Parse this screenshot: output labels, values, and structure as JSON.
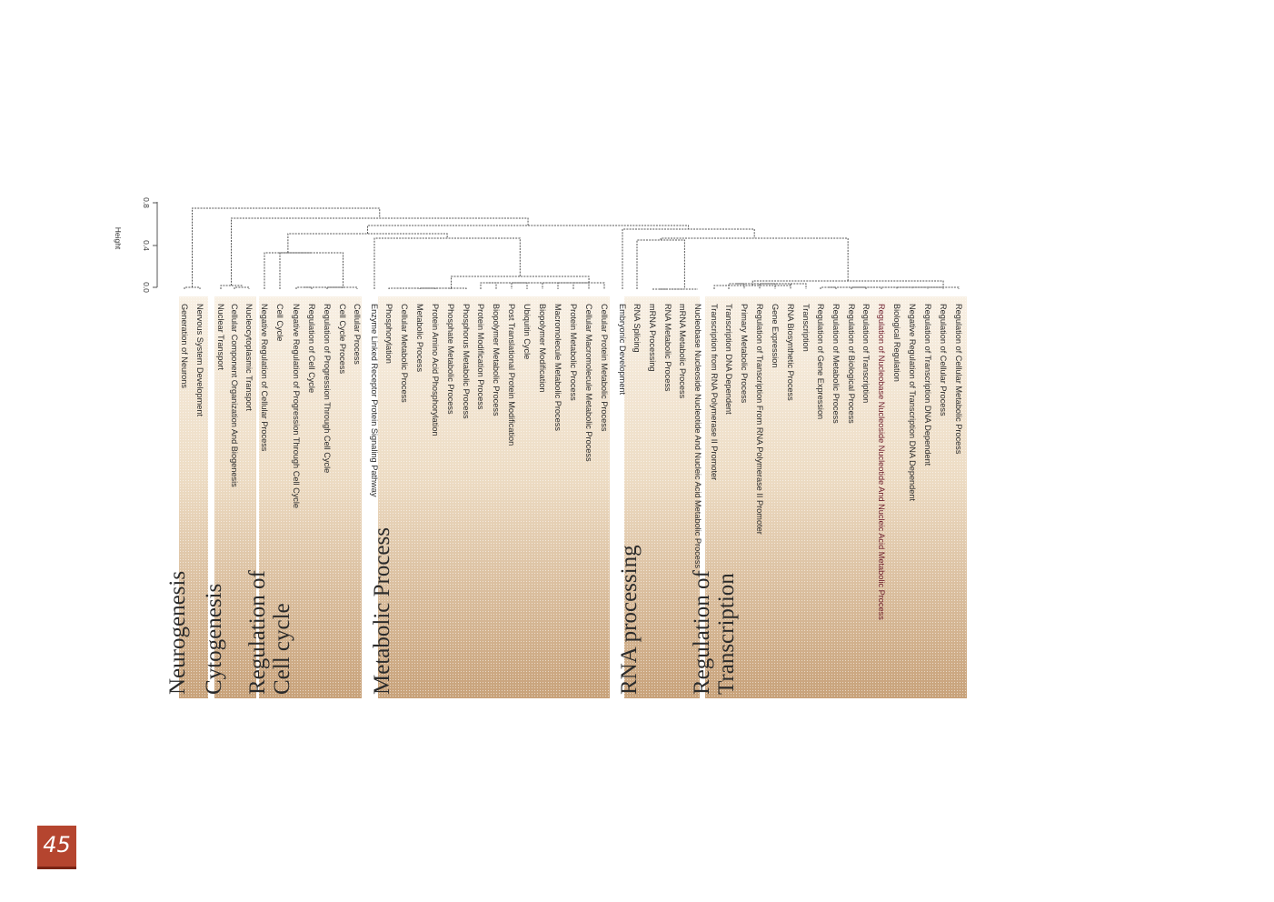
{
  "page_number": "45",
  "axis": {
    "title": "Height",
    "ticks": [
      "0.0",
      "0.4",
      "0.8"
    ]
  },
  "colors": {
    "band_top": "#c8a27a",
    "band_bottom": "#f6ead9",
    "leaf_text": "#2a2a2a",
    "accent_leaf_text": "#6a1a2a",
    "page_badge": "#b5452f"
  },
  "clusters": [
    {
      "id": "neurogenesis",
      "label_lines": [
        "Neurogenesis"
      ],
      "leaves": [
        "Generation of Neurons",
        "Nervous System Development"
      ]
    },
    {
      "id": "cytogenesis",
      "label_lines": [
        "Cytogenesis"
      ],
      "leaves": [
        "Nuclear Transport",
        "Cellular Component Organization And Biogenesis",
        "Nucleocytoplasmic Transport"
      ]
    },
    {
      "id": "cell-cycle",
      "label_lines": [
        "Regulation of",
        "Cell cycle"
      ],
      "leaves": [
        "Negative Regulation of Cellular Process",
        "Cell Cycle",
        "Negative Regulation of Progression Through Cell Cycle",
        "Regulation of Cell Cycle",
        "Regulation of Progression Through Cell Cycle",
        "Cell Cycle Process",
        "Cellular Process"
      ]
    },
    {
      "id": "metabolic",
      "label_lines": [
        "Metabolic Process"
      ],
      "leaves": [
        "Enzyme Linked Receptor Protein Signaling Pathway",
        "Phosphorylation",
        "Cellular Metabolic Process",
        "Metabolic Process",
        "Protein Amino Acid Phosphorylation",
        "Phosphate Metabolic Process",
        "Phosphorus Metabolic Process",
        "Protein Modification Process",
        "Biopolymer Metabolic Process",
        "Post Translational Protein Modification",
        "Ubiquitin Cycle",
        "Biopolymer Modification",
        "Macromolecule Metabolic Process",
        "Protein Metabolic Process",
        "Cellular Macromolecule Metabolic Process",
        "Cellular Protein Metabolic Process"
      ]
    },
    {
      "id": "rna",
      "label_lines": [
        "RNA processing"
      ],
      "leaves": [
        "Embryonic Development",
        "RNA Splicing",
        "mRNA Processing",
        "RNA Metabolic Process",
        "mRNA Metabolic Process",
        "Nucleobase  Nucleoside  Nucleotide And Nucleic Acid Metabolic Process"
      ]
    },
    {
      "id": "transcription",
      "label_lines": [
        "Regulation of",
        "Transcription"
      ],
      "leaves": [
        "Transcription from RNA Polymerase II Promoter",
        "Transcription DNA Dependent",
        "Primary Metabolic Process",
        "Regulation of Transcription From RNA Polymerase II Promoter",
        "Gene Expression",
        "RNA Biosynthetic Process",
        "Transcription",
        "Regulation of Gene Expression",
        "Regulation of Metabolic Process",
        "Regulation of Biological Process",
        "Regulation of Transcription",
        "Regulation of Nucleobase  Nucleoside  Nucleotide And Nucleic Acid Metabolic Process",
        "Biological Regulation",
        "Negative Regulation of Transcription  DNA Dependent",
        "Regulation of Transcription  DNA Dependent",
        "Regulation of Cellular Process",
        "Regulation of Cellular Metabolic Process"
      ]
    }
  ]
}
